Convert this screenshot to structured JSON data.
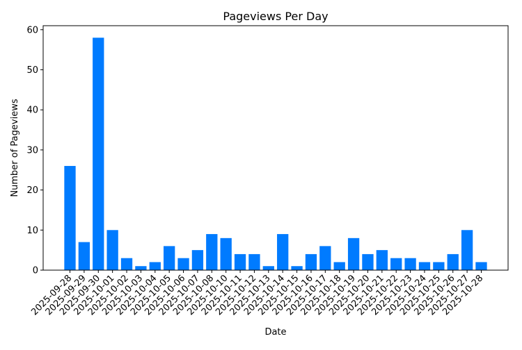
{
  "chart_data": {
    "type": "bar",
    "title": "Pageviews Per Day",
    "x_label": "Date",
    "y_label": "Number of Pageviews",
    "categories": [
      "2025-09-28",
      "2025-09-29",
      "2025-09-30",
      "2025-10-01",
      "2025-10-02",
      "2025-10-03",
      "2025-10-04",
      "2025-10-05",
      "2025-10-06",
      "2025-10-07",
      "2025-10-08",
      "2025-10-10",
      "2025-10-11",
      "2025-10-12",
      "2025-10-13",
      "2025-10-14",
      "2025-10-15",
      "2025-10-16",
      "2025-10-17",
      "2025-10-18",
      "2025-10-19",
      "2025-10-20",
      "2025-10-21",
      "2025-10-22",
      "2025-10-23",
      "2025-10-24",
      "2025-10-25",
      "2025-10-26",
      "2025-10-27",
      "2025-10-28"
    ],
    "values": [
      26,
      7,
      58,
      10,
      3,
      1,
      2,
      6,
      3,
      5,
      9,
      8,
      4,
      4,
      1,
      9,
      1,
      4,
      6,
      2,
      8,
      4,
      5,
      3,
      3,
      2,
      2,
      4,
      10,
      2
    ],
    "color": "#007bff",
    "ylim": [
      0,
      61
    ],
    "yticks": [
      0,
      10,
      20,
      30,
      40,
      50,
      60
    ],
    "grid": false
  }
}
